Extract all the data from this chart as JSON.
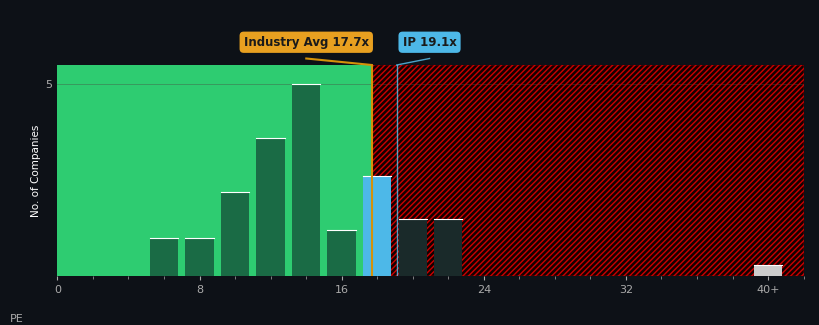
{
  "background_color": "#0d1117",
  "plot_bg_left_color": "#2ecc71",
  "plot_bg_right_base_color": "#150000",
  "hatch_color": "#cc0000",
  "bar_color_left": "#1a6b45",
  "bar_color_ip": "#4db8e8",
  "bar_color_right": "#1a2a2a",
  "industry_avg_line_color": "#d4920a",
  "ip_line_color": "#5bc8f5",
  "ylabel": "No. of Companies",
  "x_label_prefix": "PE",
  "tick_color": "#aaaaaa",
  "axis_color": "#ffffff",
  "industry_avg_value": 17.7,
  "ip_value": 19.1,
  "industry_avg_label": "Industry Avg 17.7x",
  "ip_label": "IP 19.1x",
  "industry_avg_box_color": "#e8a020",
  "ip_box_color": "#4db8e8",
  "x_min": 0,
  "x_max": 42,
  "y_min": 0,
  "y_max": 5.5,
  "x_ticks": [
    0,
    8,
    16,
    24,
    32,
    40
  ],
  "x_tick_labels": [
    "0",
    "8",
    "16",
    "24",
    "32",
    "40+"
  ],
  "y_ticks": [
    5
  ],
  "bars": [
    {
      "x": 6,
      "height": 1.0,
      "color": "#1a6b45"
    },
    {
      "x": 8,
      "height": 1.0,
      "color": "#1a6b45"
    },
    {
      "x": 10,
      "height": 2.2,
      "color": "#1a6b45"
    },
    {
      "x": 12,
      "height": 3.6,
      "color": "#1a6b45"
    },
    {
      "x": 14,
      "height": 5.0,
      "color": "#1a6b45"
    },
    {
      "x": 16,
      "height": 1.2,
      "color": "#1a6b45"
    },
    {
      "x": 18,
      "height": 2.6,
      "color": "#4db8e8"
    },
    {
      "x": 20,
      "height": 1.5,
      "color": "#1a2a2a"
    },
    {
      "x": 22,
      "height": 1.5,
      "color": "#1a2a2a"
    },
    {
      "x": 40,
      "height": 0.3,
      "color": "#cccccc"
    }
  ],
  "bar_width": 1.6
}
